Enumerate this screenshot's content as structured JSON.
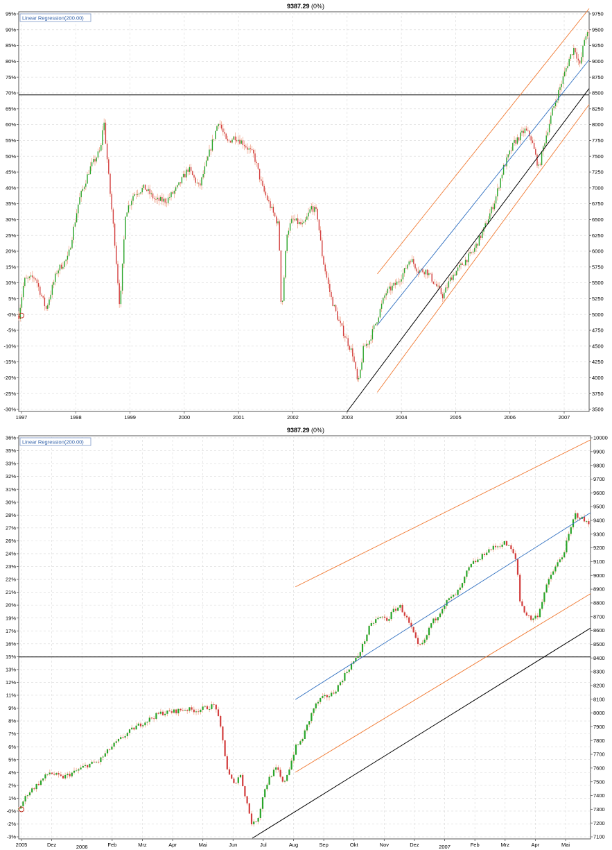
{
  "colors": {
    "up": "#28a428",
    "down": "#d23c3c",
    "shadow": "#f0a890",
    "regression": "#2f6fc0",
    "channel": "#f07830",
    "trend": "#000000",
    "grid": "#d8d8d8",
    "border": "#555555"
  },
  "chart_data": [
    {
      "type": "candlestick",
      "title": "9387.29",
      "title_change": "(0%)",
      "legend": "Linear Regression(200.00)",
      "left_ticks": [
        "95%",
        "90%",
        "85%",
        "80%",
        "75%",
        "70%",
        "65%",
        "60%",
        "55%",
        "50%",
        "45%",
        "40%",
        "35%",
        "30%",
        "25%",
        "20%",
        "15%",
        "10%",
        "5%",
        "-0%",
        "-5%",
        "-10%",
        "-15%",
        "-20%",
        "-25%",
        "-30%"
      ],
      "right_ticks": [
        "9750",
        "9500",
        "9250",
        "9000",
        "8750",
        "8500",
        "8250",
        "8000",
        "7750",
        "7500",
        "7250",
        "7000",
        "6750",
        "6500",
        "6250",
        "6000",
        "5750",
        "5500",
        "5250",
        "5000",
        "4750",
        "4500",
        "4250",
        "4000",
        "3750",
        "3500"
      ],
      "x_ticks": [
        "1997",
        "1998",
        "1999",
        "2000",
        "2001",
        "2002",
        "2003",
        "2004",
        "2005",
        "2006",
        "2007"
      ],
      "ylim": [
        3500,
        9750
      ],
      "xlim": [
        1997.0,
        2007.42
      ],
      "baseline_value": 5000,
      "horizontal_line": 8450,
      "price_path": [
        [
          1997.0,
          5000
        ],
        [
          1997.1,
          5550
        ],
        [
          1997.3,
          5600
        ],
        [
          1997.5,
          5100
        ],
        [
          1997.7,
          5700
        ],
        [
          1997.9,
          5900
        ],
        [
          1998.1,
          6800
        ],
        [
          1998.3,
          7300
        ],
        [
          1998.5,
          7600
        ],
        [
          1998.55,
          8100
        ],
        [
          1998.65,
          7100
        ],
        [
          1998.75,
          6200
        ],
        [
          1998.85,
          5100
        ],
        [
          1998.95,
          6600
        ],
        [
          1999.1,
          6900
        ],
        [
          1999.3,
          7000
        ],
        [
          1999.5,
          6800
        ],
        [
          1999.7,
          6800
        ],
        [
          1999.9,
          7000
        ],
        [
          2000.1,
          7300
        ],
        [
          2000.3,
          7000
        ],
        [
          2000.5,
          7600
        ],
        [
          2000.65,
          8050
        ],
        [
          2000.8,
          7700
        ],
        [
          2000.95,
          7800
        ],
        [
          2001.1,
          7700
        ],
        [
          2001.3,
          7500
        ],
        [
          2001.45,
          7000
        ],
        [
          2001.6,
          6700
        ],
        [
          2001.75,
          6400
        ],
        [
          2001.8,
          5000
        ],
        [
          2001.9,
          6300
        ],
        [
          2002.0,
          6500
        ],
        [
          2002.2,
          6400
        ],
        [
          2002.35,
          6700
        ],
        [
          2002.45,
          6600
        ],
        [
          2002.55,
          5900
        ],
        [
          2002.7,
          5300
        ],
        [
          2002.85,
          4900
        ],
        [
          2002.95,
          4700
        ],
        [
          2003.1,
          4400
        ],
        [
          2003.2,
          3900
        ],
        [
          2003.3,
          4500
        ],
        [
          2003.4,
          4600
        ],
        [
          2003.55,
          4950
        ],
        [
          2003.7,
          5350
        ],
        [
          2003.9,
          5500
        ],
        [
          2004.05,
          5700
        ],
        [
          2004.15,
          5900
        ],
        [
          2004.3,
          5700
        ],
        [
          2004.45,
          5700
        ],
        [
          2004.6,
          5500
        ],
        [
          2004.75,
          5300
        ],
        [
          2004.9,
          5600
        ],
        [
          2005.1,
          5800
        ],
        [
          2005.3,
          6000
        ],
        [
          2005.5,
          6350
        ],
        [
          2005.7,
          6800
        ],
        [
          2005.85,
          7300
        ],
        [
          2006.05,
          7700
        ],
        [
          2006.25,
          7900
        ],
        [
          2006.35,
          7800
        ],
        [
          2006.5,
          7300
        ],
        [
          2006.6,
          7700
        ],
        [
          2006.75,
          8200
        ],
        [
          2006.9,
          8600
        ],
        [
          2007.05,
          9000
        ],
        [
          2007.15,
          9200
        ],
        [
          2007.25,
          8900
        ],
        [
          2007.35,
          9400
        ],
        [
          2007.42,
          9387
        ]
      ],
      "regression_line": [
        [
          2003.55,
          4850
        ],
        [
          2007.42,
          9000
        ]
      ],
      "channel_upper": [
        [
          2003.55,
          5650
        ],
        [
          2007.42,
          9800
        ]
      ],
      "channel_lower": [
        [
          2003.55,
          3800
        ],
        [
          2007.42,
          8300
        ]
      ],
      "trend_line": [
        [
          2003.0,
          3500
        ],
        [
          2007.42,
          8550
        ]
      ]
    },
    {
      "type": "candlestick",
      "title": "9387.29",
      "title_change": "(0%)",
      "legend": "Linear Regression(200.00)",
      "left_ticks": [
        "36%",
        "35%",
        "33%",
        "32%",
        "31%",
        "30%",
        "28%",
        "27%",
        "26%",
        "24%",
        "23%",
        "22%",
        "21%",
        "20%",
        "19%",
        "17%",
        "16%",
        "15%",
        "13%",
        "12%",
        "11%",
        "9%",
        "8%",
        "7%",
        "6%",
        "5%",
        "4%",
        "2%",
        "1%",
        "-0%",
        "-2%",
        "-3%"
      ],
      "right_ticks": [
        "10000",
        "9900",
        "9800",
        "9700",
        "9600",
        "9500",
        "9400",
        "9300",
        "9200",
        "9100",
        "9000",
        "8900",
        "8800",
        "8700",
        "8600",
        "8500",
        "8400",
        "8300",
        "8200",
        "8100",
        "8000",
        "7900",
        "7800",
        "7700",
        "7600",
        "7500",
        "7400",
        "7300",
        "7200",
        "7100"
      ],
      "x_ticks": [
        "2005",
        "Dez",
        "2006",
        "Feb",
        "Mrz",
        "Apr",
        "Mai",
        "Jun",
        "Jul",
        "Aug",
        "Sep",
        "Okt",
        "Nov",
        "Dez",
        "2007",
        "Feb",
        "Mrz",
        "Apr",
        "Mai"
      ],
      "x_tick_sub": {
        "2006": true,
        "2007": true
      },
      "ylim": [
        7085,
        10020
      ],
      "xlim": [
        0,
        18.6
      ],
      "baseline_value": 7300,
      "horizontal_line": 8410,
      "price_path": [
        [
          0.0,
          7300
        ],
        [
          0.3,
          7420
        ],
        [
          0.6,
          7480
        ],
        [
          1.0,
          7570
        ],
        [
          1.4,
          7530
        ],
        [
          1.8,
          7570
        ],
        [
          2.2,
          7620
        ],
        [
          2.6,
          7650
        ],
        [
          3.0,
          7750
        ],
        [
          3.4,
          7830
        ],
        [
          3.8,
          7900
        ],
        [
          4.2,
          7950
        ],
        [
          4.6,
          8000
        ],
        [
          5.0,
          8010
        ],
        [
          5.4,
          8030
        ],
        [
          5.8,
          8020
        ],
        [
          6.1,
          8040
        ],
        [
          6.4,
          8060
        ],
        [
          6.6,
          7850
        ],
        [
          6.8,
          7570
        ],
        [
          7.0,
          7480
        ],
        [
          7.2,
          7560
        ],
        [
          7.4,
          7370
        ],
        [
          7.6,
          7180
        ],
        [
          7.8,
          7250
        ],
        [
          8.0,
          7450
        ],
        [
          8.2,
          7550
        ],
        [
          8.4,
          7600
        ],
        [
          8.6,
          7480
        ],
        [
          8.8,
          7600
        ],
        [
          9.0,
          7750
        ],
        [
          9.2,
          7800
        ],
        [
          9.4,
          7920
        ],
        [
          9.6,
          8040
        ],
        [
          9.8,
          8100
        ],
        [
          10.0,
          8120
        ],
        [
          10.2,
          8140
        ],
        [
          10.4,
          8200
        ],
        [
          10.6,
          8280
        ],
        [
          10.8,
          8350
        ],
        [
          11.0,
          8400
        ],
        [
          11.2,
          8500
        ],
        [
          11.4,
          8620
        ],
        [
          11.6,
          8680
        ],
        [
          11.8,
          8700
        ],
        [
          12.0,
          8680
        ],
        [
          12.2,
          8750
        ],
        [
          12.4,
          8780
        ],
        [
          12.6,
          8700
        ],
        [
          12.8,
          8600
        ],
        [
          13.0,
          8480
        ],
        [
          13.2,
          8520
        ],
        [
          13.4,
          8650
        ],
        [
          13.6,
          8700
        ],
        [
          13.8,
          8780
        ],
        [
          14.0,
          8830
        ],
        [
          14.2,
          8860
        ],
        [
          14.4,
          8920
        ],
        [
          14.6,
          9040
        ],
        [
          14.8,
          9100
        ],
        [
          15.0,
          9120
        ],
        [
          15.2,
          9180
        ],
        [
          15.4,
          9200
        ],
        [
          15.6,
          9220
        ],
        [
          15.8,
          9240
        ],
        [
          16.0,
          9200
        ],
        [
          16.2,
          9100
        ],
        [
          16.3,
          8820
        ],
        [
          16.5,
          8720
        ],
        [
          16.7,
          8680
        ],
        [
          16.9,
          8720
        ],
        [
          17.1,
          8880
        ],
        [
          17.3,
          9000
        ],
        [
          17.5,
          9080
        ],
        [
          17.7,
          9150
        ],
        [
          17.9,
          9300
        ],
        [
          18.1,
          9450
        ],
        [
          18.3,
          9420
        ],
        [
          18.45,
          9390
        ],
        [
          18.6,
          9387
        ]
      ],
      "regression_line": [
        [
          9.0,
          8100
        ],
        [
          18.6,
          9460
        ]
      ],
      "channel_upper": [
        [
          9.0,
          8920
        ],
        [
          18.6,
          9990
        ]
      ],
      "channel_lower": [
        [
          9.0,
          7570
        ],
        [
          18.6,
          8870
        ]
      ],
      "trend_line": [
        [
          7.6,
          7090
        ],
        [
          18.6,
          8620
        ]
      ]
    }
  ]
}
